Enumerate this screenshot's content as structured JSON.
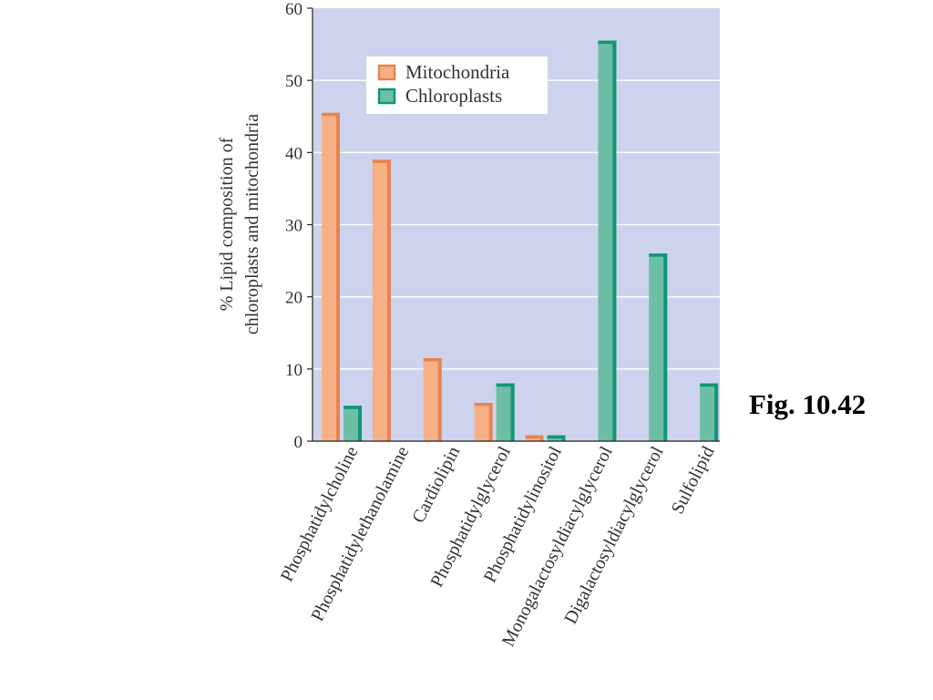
{
  "figure_label": "Fig. 10.42",
  "colors": {
    "plot_background": "#cdd3ec",
    "gridline": "#ffffff",
    "mitochondria_fill": "#f6b086",
    "mitochondria_edge": "#e8834f",
    "chloroplasts_fill": "#6cbea5",
    "chloroplasts_edge": "#109577"
  },
  "chart_data": {
    "type": "bar",
    "title": "",
    "xlabel": "",
    "ylabel": [
      "% Lipid composition of",
      "chloroplasts and mitochondria"
    ],
    "ylim": [
      0,
      60
    ],
    "yticks": [
      0,
      10,
      20,
      30,
      40,
      50,
      60
    ],
    "grid": true,
    "legend_position": "top-center",
    "categories": [
      "Phosphatidylcholine",
      "Phosphatidylethanolamine",
      "Cardiolipin",
      "Phosphatidylglycerol",
      "Phosphatidylinositol",
      "Monogalactosyldiacylglycerol",
      "Digalactosyldiacylglycerol",
      "Sulfolipid"
    ],
    "series": [
      {
        "name": "Mitochondria",
        "values": [
          45.5,
          39,
          11.5,
          5.3,
          0.8,
          0,
          0,
          0
        ]
      },
      {
        "name": "Chloroplasts",
        "values": [
          4.9,
          0,
          0,
          8,
          0.8,
          55.5,
          26,
          8
        ]
      }
    ]
  }
}
